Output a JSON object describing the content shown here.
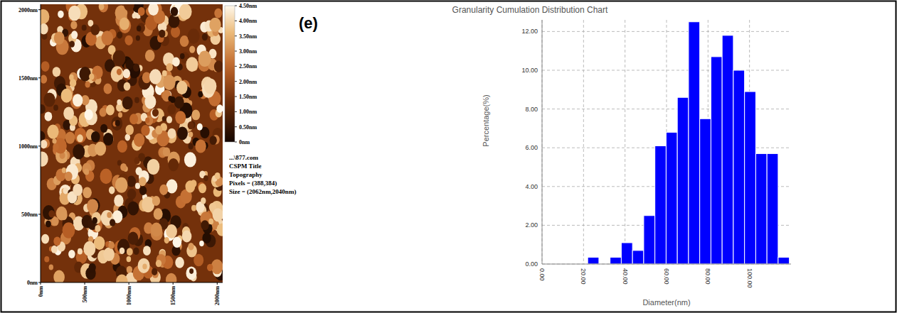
{
  "chart_data": [
    {
      "type": "image",
      "annotations": [
        "...\\877.com",
        "CSPM Title",
        "Topography",
        "Pixels = (388,384)",
        "Size = (2062nm,2040nm)"
      ],
      "xlim": [
        0,
        2062
      ],
      "ylim": [
        0,
        2040
      ],
      "xticks": [
        {
          "value": 0,
          "label": "0nm"
        },
        {
          "value": 500,
          "label": "500nm"
        },
        {
          "value": 1000,
          "label": "1000nm"
        },
        {
          "value": 1500,
          "label": "1500nm"
        },
        {
          "value": 2000,
          "label": "2000nm"
        }
      ],
      "yticks": [
        {
          "value": 0,
          "label": "0nm"
        },
        {
          "value": 500,
          "label": "500nm"
        },
        {
          "value": 1000,
          "label": "1000nm"
        },
        {
          "value": 1500,
          "label": "1500nm"
        },
        {
          "value": 2000,
          "label": "2000nm"
        }
      ],
      "colorbar_range": [
        0,
        4.5
      ],
      "colorbar_ticks": [
        {
          "value": 0,
          "label": "0nm"
        },
        {
          "value": 0.5,
          "label": "0.50nm"
        },
        {
          "value": 1,
          "label": "1.00nm"
        },
        {
          "value": 1.5,
          "label": "1.50nm"
        },
        {
          "value": 2,
          "label": "2.00nm"
        },
        {
          "value": 2.5,
          "label": "2.50nm"
        },
        {
          "value": 3,
          "label": "3.00nm"
        },
        {
          "value": 3.5,
          "label": "3.50nm"
        },
        {
          "value": 4,
          "label": "4.00nm"
        },
        {
          "value": 4.5,
          "label": "4.50nm"
        }
      ]
    },
    {
      "type": "histogram",
      "panel_label": "(e)",
      "title": "Granularity Cumulation Distribution Chart",
      "x_label": "Diameter(nm)",
      "y_label": "Percentage(%)",
      "bins": [
        22,
        27.4,
        32.8,
        38.2,
        43.6,
        49,
        54.4,
        59.8,
        65.2,
        70.6,
        76,
        81.4,
        86.8,
        92.2,
        97.6,
        103,
        108.4,
        113.8,
        119.2
      ],
      "values": [
        0.35,
        0,
        0.35,
        1.1,
        0.7,
        2.5,
        6.1,
        6.8,
        8.6,
        12.5,
        7.5,
        10.7,
        11.8,
        10.0,
        8.9,
        5.7,
        5.7,
        0.35
      ],
      "color": "#0000ff",
      "xlim": [
        0,
        120
      ],
      "ylim": [
        0,
        12.6
      ],
      "xticks": [
        {
          "value": 0,
          "label": "0.00"
        },
        {
          "value": 20,
          "label": "20.00"
        },
        {
          "value": 40,
          "label": "40.00"
        },
        {
          "value": 60,
          "label": "60.00"
        },
        {
          "value": 80,
          "label": "80.00"
        },
        {
          "value": 100,
          "label": "100.00"
        }
      ],
      "yticks": [
        {
          "value": 0,
          "label": "0.00"
        },
        {
          "value": 2,
          "label": "2.00"
        },
        {
          "value": 4,
          "label": "4.00"
        },
        {
          "value": 6,
          "label": "6.00"
        },
        {
          "value": 8,
          "label": "8.00"
        },
        {
          "value": 10,
          "label": "10.00"
        },
        {
          "value": 12,
          "label": "12.00"
        }
      ],
      "grid": true
    }
  ]
}
